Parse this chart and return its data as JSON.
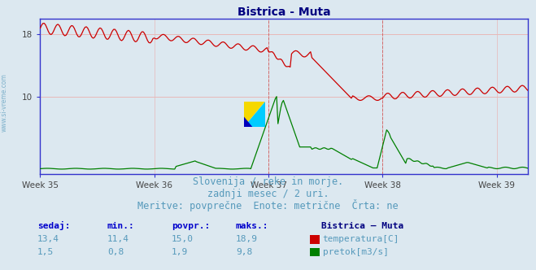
{
  "title": "Bistrica - Muta",
  "title_color": "#000080",
  "title_fontsize": 10,
  "background_color": "#dce8f0",
  "plot_bg_color": "#dce8f0",
  "x_tick_labels": [
    "Week 35",
    "Week 36",
    "Week 37",
    "Week 38",
    "Week 39"
  ],
  "x_tick_positions": [
    0,
    84,
    168,
    252,
    336
  ],
  "total_points": 360,
  "ylim": [
    0,
    20
  ],
  "y_ticks": [
    10,
    18
  ],
  "grid_color": "#e8b8b8",
  "axis_color": "#3333cc",
  "temp_color": "#cc0000",
  "flow_color": "#008000",
  "vline_color": "#cc5555",
  "vline_positions": [
    168,
    252
  ],
  "footer_lines": [
    "Slovenija / reke in morje.",
    "zadnji mesec / 2 uri.",
    "Meritve: povprečne  Enote: metrične  Črta: ne"
  ],
  "footer_color": "#5599bb",
  "footer_fontsize": 8.5,
  "table_headers": [
    "sedaj:",
    "min.:",
    "povpr.:",
    "maks.:"
  ],
  "table_header_color": "#0000cc",
  "table_values_temp": [
    "13,4",
    "11,4",
    "15,0",
    "18,9"
  ],
  "table_values_flow": [
    "1,5",
    "0,8",
    "1,9",
    "9,8"
  ],
  "table_value_color": "#5599bb",
  "legend_label_temp": "temperatura[C]",
  "legend_label_flow": "pretok[m3/s]",
  "legend_title": "Bistrica – Muta",
  "legend_title_color": "#000080",
  "side_label": "www.si-vreme.com",
  "side_label_color": "#5599bb"
}
